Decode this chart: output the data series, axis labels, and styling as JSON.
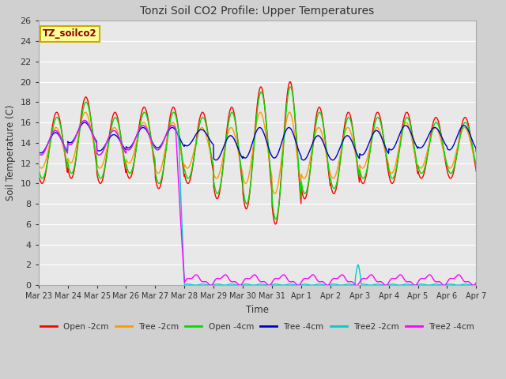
{
  "title": "Tonzi Soil CO2 Profile: Upper Temperatures",
  "xlabel": "Time",
  "ylabel": "Soil Temperature (C)",
  "ylim": [
    0,
    26
  ],
  "yticks": [
    0,
    2,
    4,
    6,
    8,
    10,
    12,
    14,
    16,
    18,
    20,
    22,
    24,
    26
  ],
  "series_colors": {
    "Open -2cm": "#ff0000",
    "Tree -2cm": "#ff9900",
    "Open -4cm": "#00dd00",
    "Tree -4cm": "#0000cc",
    "Tree2 -2cm": "#00cccc",
    "Tree2 -4cm": "#ff00ff"
  },
  "plot_bg_color": "#e8e8e8",
  "fig_bg_color": "#d0d0d0",
  "legend_box_facecolor": "#ffff99",
  "legend_box_edgecolor": "#ccaa00",
  "legend_text": "TZ_soilco2",
  "tick_labels": [
    "Mar 23",
    "Mar 24",
    "Mar 25",
    "Mar 26",
    "Mar 27",
    "Mar 28",
    "Mar 29",
    "Mar 30",
    "Mar 31",
    "Apr 1",
    "Apr 2",
    "Apr 3",
    "Apr 4",
    "Apr 5",
    "Apr 6",
    "Apr 7"
  ]
}
